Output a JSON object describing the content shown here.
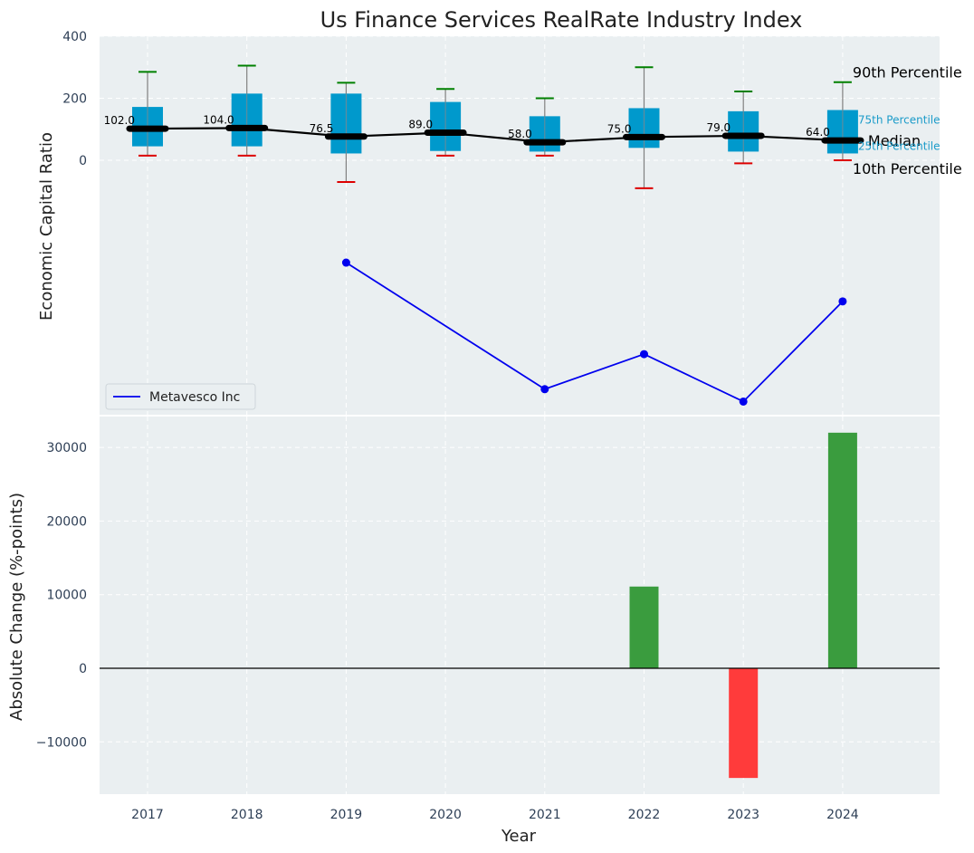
{
  "chart_data": [
    {
      "type": "box",
      "title": "Us Finance Services RealRate Industry Index",
      "ylabel": "Economic Capital Ratio",
      "ylim": [
        -825,
        400
      ],
      "yticks": [
        0,
        200,
        400
      ],
      "ytick_labels": [
        "0",
        "200",
        "400"
      ],
      "categories": [
        "2017",
        "2018",
        "2019",
        "2020",
        "2021",
        "2022",
        "2023",
        "2024"
      ],
      "boxes": [
        {
          "year": "2017",
          "p10": 15,
          "p25": 45,
          "median": 102,
          "p75": 172,
          "p90": 285,
          "median_label": "102.0"
        },
        {
          "year": "2018",
          "p10": 15,
          "p25": 45,
          "median": 104,
          "p75": 215,
          "p90": 305,
          "median_label": "104.0"
        },
        {
          "year": "2019",
          "p10": -70,
          "p25": 22,
          "median": 76.5,
          "p75": 215,
          "p90": 250,
          "median_label": "76.5"
        },
        {
          "year": "2020",
          "p10": 15,
          "p25": 30,
          "median": 89,
          "p75": 188,
          "p90": 230,
          "median_label": "89.0"
        },
        {
          "year": "2021",
          "p10": 15,
          "p25": 28,
          "median": 58,
          "p75": 142,
          "p90": 200,
          "median_label": "58.0"
        },
        {
          "year": "2022",
          "p10": -90,
          "p25": 40,
          "median": 75,
          "p75": 168,
          "p90": 300,
          "median_label": "75.0"
        },
        {
          "year": "2023",
          "p10": -10,
          "p25": 28,
          "median": 79,
          "p75": 158,
          "p90": 222,
          "median_label": "79.0"
        },
        {
          "year": "2024",
          "p10": 0,
          "p25": 22,
          "median": 64,
          "p75": 162,
          "p90": 252,
          "median_label": "64.0"
        }
      ],
      "series": [
        {
          "name": "Metavesco Inc",
          "color": "#0000ee",
          "points": [
            {
              "x": "2019",
              "y": -330
            },
            {
              "x": "2021",
              "y": -738
            },
            {
              "x": "2022",
              "y": -625
            },
            {
              "x": "2023",
              "y": -778
            },
            {
              "x": "2024",
              "y": -455
            }
          ]
        }
      ],
      "percentile_labels": {
        "p90": "90th Percentile",
        "p75": "75th Percentile",
        "median": "Median",
        "p25": "25th Percentile",
        "p10": "10th Percentile"
      },
      "legend": {
        "placement": "lower-left",
        "entries": [
          "Metavesco Inc"
        ]
      },
      "grid": true,
      "colors": {
        "box": "#0099cc",
        "median_line": "#000000",
        "whisker_top": "#008000",
        "whisker_bottom": "#dd0000",
        "whisker_line": "#808080",
        "background": "#eaeff1"
      }
    },
    {
      "type": "bar",
      "xlabel": "Year",
      "ylabel": "Absolute Change (%-points)",
      "ylim": [
        -17000,
        34000
      ],
      "yticks": [
        -10000,
        0,
        10000,
        20000,
        30000
      ],
      "ytick_labels": [
        "−10000",
        "0",
        "10000",
        "20000",
        "30000"
      ],
      "categories": [
        "2017",
        "2018",
        "2019",
        "2020",
        "2021",
        "2022",
        "2023",
        "2024"
      ],
      "values": [
        0,
        0,
        0,
        0,
        0,
        11100,
        -14900,
        32000
      ],
      "grid": true,
      "colors": {
        "positive": "#3a9c3e",
        "negative": "#ff3b3b",
        "zero_line": "#000000",
        "background": "#eaeff1"
      }
    }
  ]
}
